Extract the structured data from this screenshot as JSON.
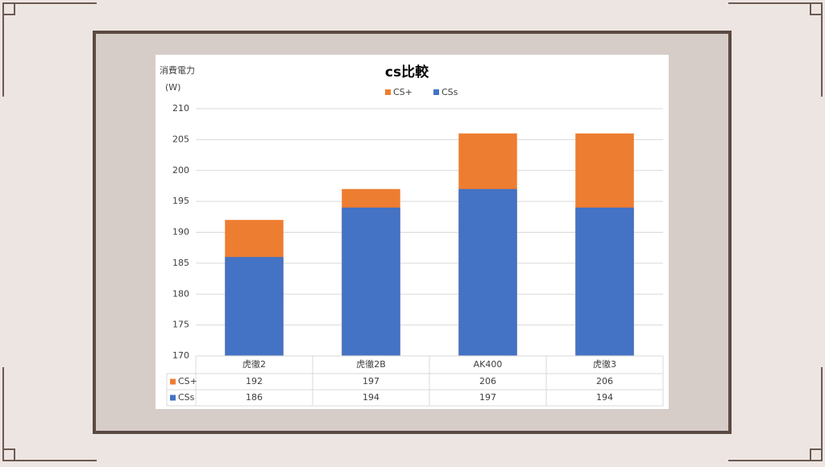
{
  "chart_data": {
    "type": "bar",
    "title": "cs比較",
    "y_label": [
      "消費電力",
      "(W)"
    ],
    "categories": [
      "虎徹2",
      "虎徹2B",
      "AK400",
      "虎徹3"
    ],
    "series": [
      {
        "name": "CS+",
        "color": "#ed7d31",
        "values": [
          192,
          197,
          206,
          206
        ]
      },
      {
        "name": "CSs",
        "color": "#4472c4",
        "values": [
          186,
          194,
          197,
          194
        ]
      }
    ],
    "ylim": [
      170,
      210
    ],
    "yticks": [
      170,
      175,
      180,
      185,
      190,
      195,
      200,
      205,
      210
    ],
    "grid": true,
    "legend": "top"
  }
}
